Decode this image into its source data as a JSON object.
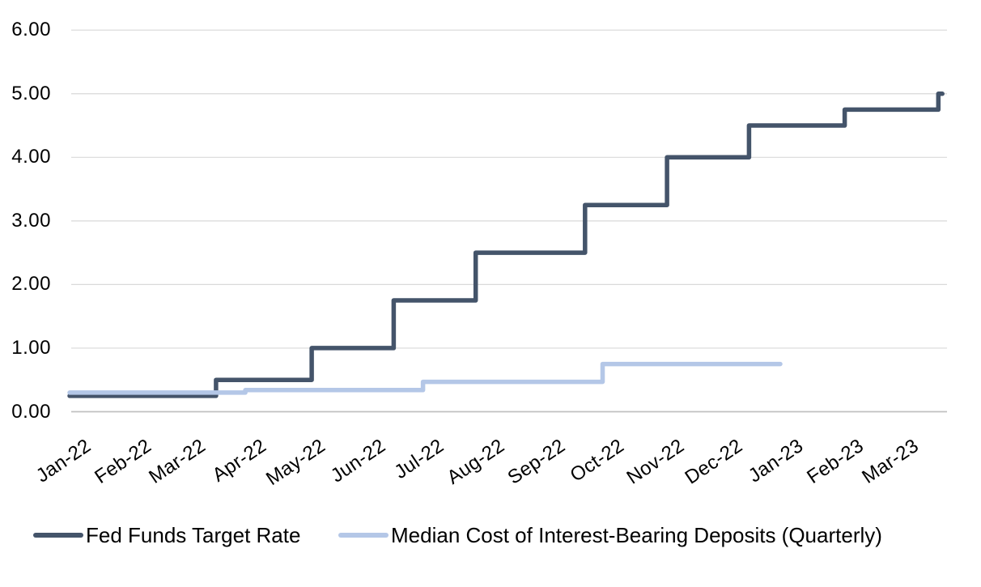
{
  "colors": {
    "background": "#FFFFFF",
    "grid": "#D9D9D9",
    "zero_axis": "#C0C0C0",
    "text": "#000000",
    "series_fed": "#44546A",
    "series_deposits": "#B4C7E7"
  },
  "chart_data": {
    "type": "line",
    "subtype": "step",
    "title": "",
    "xlabel": "",
    "ylabel": "",
    "ylim": [
      0,
      6
    ],
    "grid": "horizontal-only",
    "legend_position": "bottom-left",
    "y_ticks": [
      "6.00",
      "5.00",
      "4.00",
      "3.00",
      "2.00",
      "1.00",
      "0.00"
    ],
    "x_ticks": [
      "Jan-22",
      "Feb-22",
      "Mar-22",
      "Apr-22",
      "May-22",
      "Jun-22",
      "Jul-22",
      "Aug-22",
      "Sep-22",
      "Oct-22",
      "Nov-22",
      "Dec-22",
      "Jan-23",
      "Feb-23",
      "Mar-23"
    ],
    "series": [
      {
        "name": "Fed Funds Target Rate",
        "color": "#44546A",
        "interpolation": "step-after",
        "points": [
          {
            "date": "2022-01-01",
            "value": 0.25
          },
          {
            "date": "2022-03-17",
            "value": 0.5
          },
          {
            "date": "2022-05-05",
            "value": 1.0
          },
          {
            "date": "2022-06-16",
            "value": 1.75
          },
          {
            "date": "2022-07-28",
            "value": 2.5
          },
          {
            "date": "2022-09-22",
            "value": 3.25
          },
          {
            "date": "2022-11-03",
            "value": 4.0
          },
          {
            "date": "2022-12-15",
            "value": 4.5
          },
          {
            "date": "2023-02-02",
            "value": 4.75
          },
          {
            "date": "2023-03-22",
            "value": 5.0
          }
        ],
        "end_date": "2023-03-24"
      },
      {
        "name": "Median Cost of Interest-Bearing Deposits (Quarterly)",
        "color": "#B4C7E7",
        "interpolation": "step-after",
        "points": [
          {
            "date": "2022-01-01",
            "value": 0.3,
            "period": "Q1 2022"
          },
          {
            "date": "2022-04-01",
            "value": 0.34,
            "period": "Q2 2022"
          },
          {
            "date": "2022-07-01",
            "value": 0.47,
            "period": "Q3 2022"
          },
          {
            "date": "2022-10-01",
            "value": 0.75,
            "period": "Q4 2022"
          }
        ],
        "end_date": "2022-12-31"
      }
    ]
  },
  "legend": {
    "items": [
      {
        "label": "Fed Funds Target Rate",
        "color": "#44546A"
      },
      {
        "label": "Median Cost of Interest-Bearing Deposits (Quarterly)",
        "color": "#B4C7E7"
      }
    ]
  }
}
